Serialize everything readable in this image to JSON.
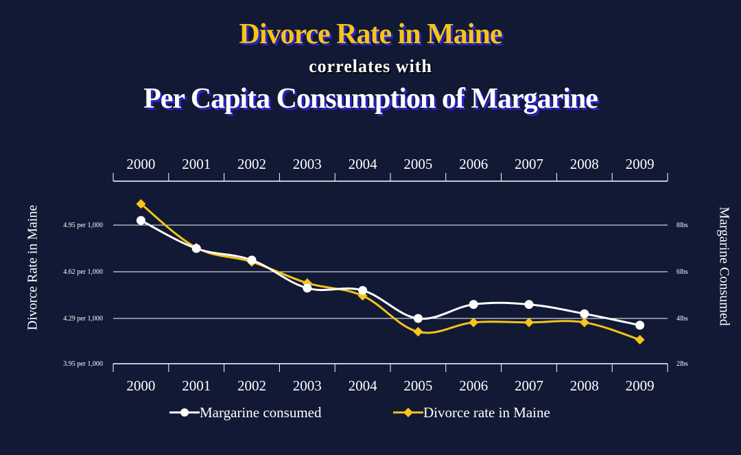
{
  "title": {
    "main": "Divorce Rate in Maine",
    "connector": "correlates with",
    "sub": "Per Capita Consumption of Margarine"
  },
  "colors": {
    "background": "#121935",
    "divorce": "#f5c518",
    "margarine": "#ffffff",
    "title_shadow": "#2a22c8"
  },
  "chart_data": {
    "type": "line",
    "x": [
      "2000",
      "2001",
      "2002",
      "2003",
      "2004",
      "2005",
      "2006",
      "2007",
      "2008",
      "2009"
    ],
    "left_axis": {
      "label": "Divorce Rate in Maine",
      "ticks": [
        3.95,
        4.29,
        4.62,
        4.95
      ],
      "tick_labels": [
        "3.95 per 1,000",
        "4.29 per 1,000",
        "4.62 per 1,000",
        "4.95 per 1,000"
      ],
      "ylim": [
        3.95,
        4.95
      ]
    },
    "right_axis": {
      "label": "Margarine Consumed",
      "ticks": [
        2,
        4,
        6,
        8
      ],
      "tick_labels": [
        "2lbs",
        "4lbs",
        "6lbs",
        "8lbs"
      ],
      "ylim": [
        2,
        8
      ]
    },
    "series": [
      {
        "name": "Margarine consumed",
        "axis": "right",
        "marker": "circle",
        "values": [
          8.2,
          7.0,
          6.5,
          5.3,
          5.2,
          4.0,
          4.6,
          4.6,
          4.2,
          3.7
        ]
      },
      {
        "name": "Divorce rate in Maine",
        "axis": "left",
        "marker": "diamond",
        "values": [
          5.1,
          4.79,
          4.69,
          4.54,
          4.45,
          4.19,
          4.26,
          4.26,
          4.26,
          4.13
        ]
      }
    ],
    "grid": true,
    "legend": "bottom-center"
  }
}
